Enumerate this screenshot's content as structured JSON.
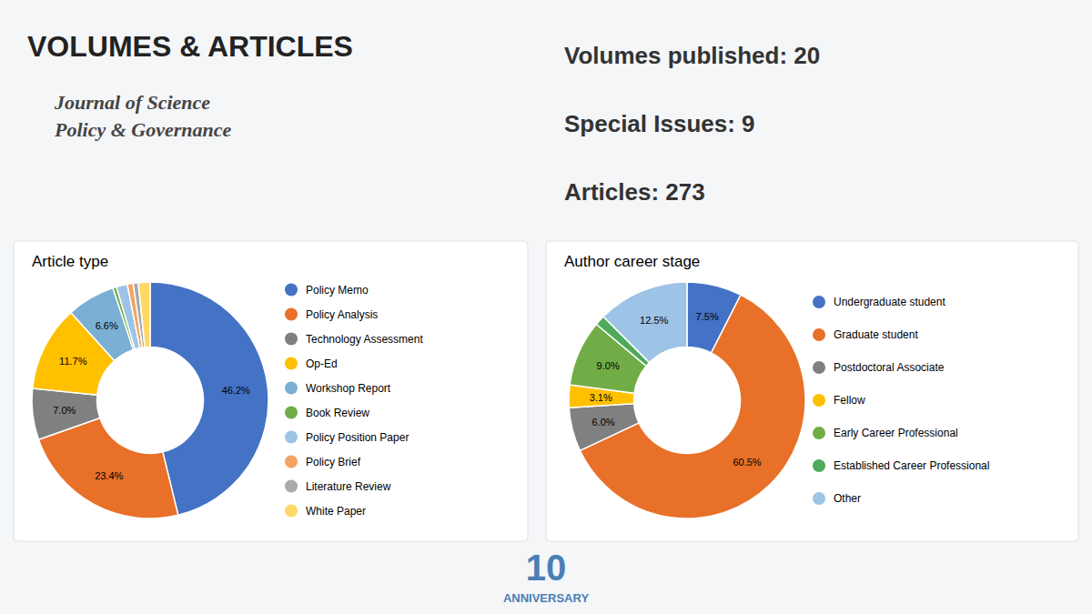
{
  "title": "VOLUMES & ARTICLES",
  "subtitle": "Journal of Science\nPolicy & Governance",
  "annotations": [
    "Volumes published: 20",
    "Special Issues: 9",
    "Articles: 273",
    "10",
    "ANNIVERSARY"
  ],
  "chart_data": [
    {
      "type": "pie",
      "title": "Article type",
      "categories": [
        "Policy Memo",
        "Policy Analysis",
        "Technology Assessment",
        "Op-Ed",
        "Workshop Report",
        "Book Review",
        "Policy Position Paper",
        "Policy Brief",
        "Literature Review",
        "White Paper"
      ],
      "values": [
        46.2,
        23.4,
        7.0,
        11.7,
        6.6,
        0.5,
        1.5,
        0.8,
        0.7,
        1.6
      ],
      "value_labels": [
        "46.2%",
        "23.4%",
        "7.0%",
        "11.7%",
        "6.6%",
        null,
        null,
        null,
        null,
        null
      ],
      "colors": [
        "#4472c4",
        "#e87028",
        "#808080",
        "#ffc000",
        "#7bafd4",
        "#70ad47",
        "#9dc3e6",
        "#f4a460",
        "#a9a9a9",
        "#ffd966"
      ],
      "legend": "right"
    },
    {
      "type": "pie",
      "title": "Author career stage",
      "categories": [
        "Undergraduate student",
        "Graduate student",
        "Postdoctoral Associate",
        "Fellow",
        "Early Career Professional",
        "Established Career Professional",
        "Other"
      ],
      "values": [
        7.5,
        60.5,
        6.0,
        3.1,
        9.0,
        1.4,
        12.5
      ],
      "value_labels": [
        "7.5%",
        "60.5%",
        "6.0%",
        "3.1%",
        "9.0%",
        null,
        "12.5%"
      ],
      "colors": [
        "#4472c4",
        "#e87028",
        "#808080",
        "#ffc000",
        "#70ad47",
        "#4faa5c",
        "#9dc3e6"
      ],
      "legend": "right"
    }
  ]
}
